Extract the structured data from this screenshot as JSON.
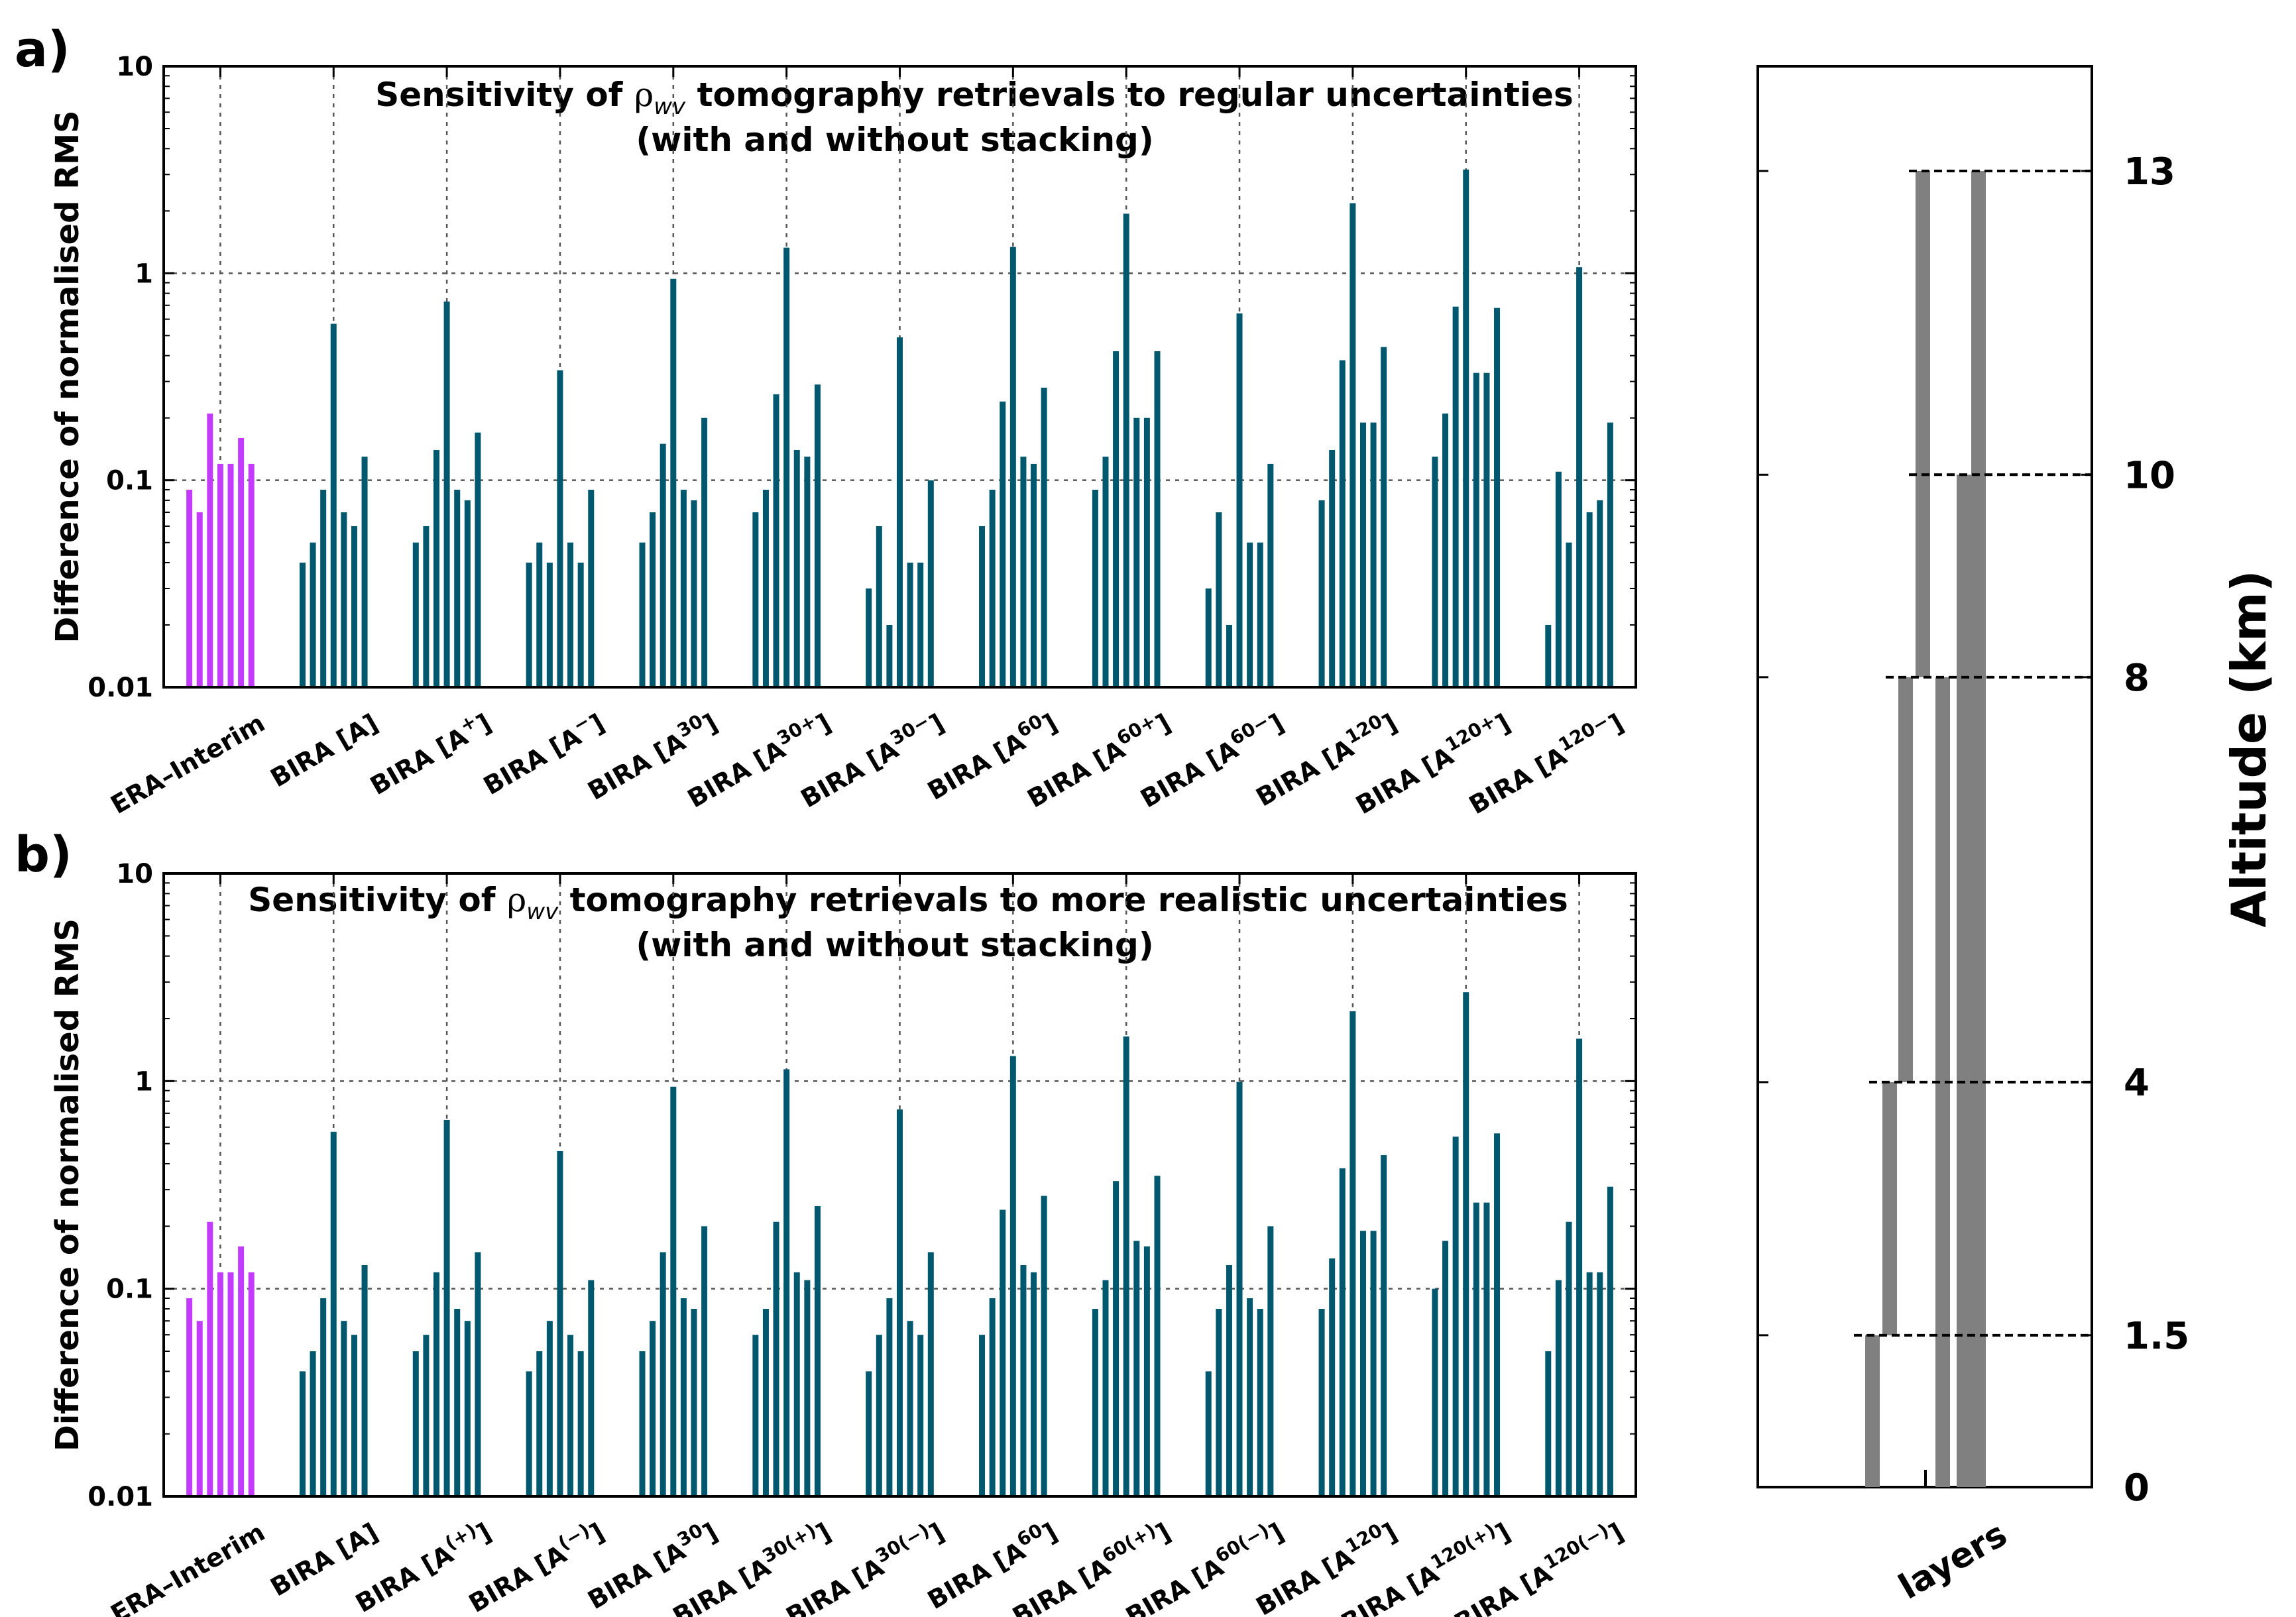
{
  "chart_data": [
    {
      "type": "bar",
      "panel_label": "a)",
      "title_prefix": "Sensitivity of ",
      "title_rho": "ρ",
      "title_sub": "wv",
      "title_suffix": " tomography retrievals to regular uncertainties",
      "subtitle": "(with and without stacking)",
      "ylabel": "Difference of normalised RMS",
      "xlabel": "",
      "yscale": "log",
      "ylim": [
        0.01,
        10
      ],
      "yticks": [
        "0.01",
        "0.1",
        "1",
        "10"
      ],
      "grid": true,
      "categories": [
        {
          "base": "ERA–Interim",
          "sup": ""
        },
        {
          "base": "BIRA [A]",
          "sup": ""
        },
        {
          "base": "BIRA [A",
          "sup": "+",
          "close": "]"
        },
        {
          "base": "BIRA [A",
          "sup": "−",
          "close": "]"
        },
        {
          "base": "BIRA [A",
          "sup": "30",
          "close": "]"
        },
        {
          "base": "BIRA [A",
          "sup": "30+",
          "close": "]"
        },
        {
          "base": "BIRA [A",
          "sup": "30−",
          "close": "]"
        },
        {
          "base": "BIRA [A",
          "sup": "60",
          "close": "]"
        },
        {
          "base": "BIRA [A",
          "sup": "60+",
          "close": "]"
        },
        {
          "base": "BIRA [A",
          "sup": "60−",
          "close": "]"
        },
        {
          "base": "BIRA [A",
          "sup": "120",
          "close": "]"
        },
        {
          "base": "BIRA [A",
          "sup": "120+",
          "close": "]"
        },
        {
          "base": "BIRA [A",
          "sup": "120−",
          "close": "]"
        }
      ],
      "groups": [
        [
          0.09,
          0.07,
          0.21,
          0.12,
          0.12,
          0.16,
          0.12
        ],
        [
          0.04,
          0.05,
          0.09,
          0.57,
          0.07,
          0.06,
          0.13
        ],
        [
          0.05,
          0.06,
          0.14,
          0.73,
          0.09,
          0.08,
          0.17
        ],
        [
          0.04,
          0.05,
          0.04,
          0.34,
          0.05,
          0.04,
          0.09
        ],
        [
          0.05,
          0.07,
          0.15,
          0.94,
          0.09,
          0.08,
          0.2
        ],
        [
          0.07,
          0.09,
          0.26,
          1.33,
          0.14,
          0.13,
          0.29
        ],
        [
          0.03,
          0.06,
          0.02,
          0.49,
          0.04,
          0.04,
          0.1
        ],
        [
          0.06,
          0.09,
          0.24,
          1.34,
          0.13,
          0.12,
          0.28
        ],
        [
          0.09,
          0.13,
          0.42,
          1.94,
          0.2,
          0.2,
          0.42
        ],
        [
          0.03,
          0.07,
          0.02,
          0.64,
          0.05,
          0.05,
          0.12
        ],
        [
          0.08,
          0.14,
          0.38,
          2.18,
          0.19,
          0.19,
          0.44
        ],
        [
          0.13,
          0.21,
          0.69,
          3.17,
          0.33,
          0.33,
          0.68
        ],
        [
          0.02,
          0.11,
          0.05,
          1.07,
          0.07,
          0.08,
          0.19
        ]
      ],
      "colors": {
        "era": "#c23bff",
        "bira": "#00586f"
      }
    },
    {
      "type": "bar",
      "panel_label": "b)",
      "title_prefix": "Sensitivity of ",
      "title_rho": "ρ",
      "title_sub": "wv",
      "title_suffix": " tomography retrievals to more realistic uncertainties",
      "subtitle": "(with and without stacking)",
      "ylabel": "Difference of normalised RMS",
      "xlabel": "",
      "yscale": "log",
      "ylim": [
        0.01,
        10
      ],
      "yticks": [
        "0.01",
        "0.1",
        "1",
        "10"
      ],
      "grid": true,
      "categories": [
        {
          "base": "ERA–Interim",
          "sup": ""
        },
        {
          "base": "BIRA [A]",
          "sup": ""
        },
        {
          "base": "BIRA [A",
          "sup": "(+)",
          "close": "]"
        },
        {
          "base": "BIRA [A",
          "sup": "(−)",
          "close": "]"
        },
        {
          "base": "BIRA [A",
          "sup": "30",
          "close": "]"
        },
        {
          "base": "BIRA [A",
          "sup": "30(+)",
          "close": "]"
        },
        {
          "base": "BIRA [A",
          "sup": "30(−)",
          "close": "]"
        },
        {
          "base": "BIRA [A",
          "sup": "60",
          "close": "]"
        },
        {
          "base": "BIRA [A",
          "sup": "60(+)",
          "close": "]"
        },
        {
          "base": "BIRA [A",
          "sup": "60(−)",
          "close": "]"
        },
        {
          "base": "BIRA [A",
          "sup": "120",
          "close": "]"
        },
        {
          "base": "BIRA [A",
          "sup": "120(+)",
          "close": "]"
        },
        {
          "base": "BIRA [A",
          "sup": "120(−)",
          "close": "]"
        }
      ],
      "groups": [
        [
          0.09,
          0.07,
          0.21,
          0.12,
          0.12,
          0.16,
          0.12
        ],
        [
          0.04,
          0.05,
          0.09,
          0.57,
          0.07,
          0.06,
          0.13
        ],
        [
          0.05,
          0.06,
          0.12,
          0.65,
          0.08,
          0.07,
          0.15
        ],
        [
          0.04,
          0.05,
          0.07,
          0.46,
          0.06,
          0.05,
          0.11
        ],
        [
          0.05,
          0.07,
          0.15,
          0.94,
          0.09,
          0.08,
          0.2
        ],
        [
          0.06,
          0.08,
          0.21,
          1.14,
          0.12,
          0.11,
          0.25
        ],
        [
          0.04,
          0.06,
          0.09,
          0.73,
          0.07,
          0.06,
          0.15
        ],
        [
          0.06,
          0.09,
          0.24,
          1.32,
          0.13,
          0.12,
          0.28
        ],
        [
          0.08,
          0.11,
          0.33,
          1.64,
          0.17,
          0.16,
          0.35
        ],
        [
          0.04,
          0.08,
          0.13,
          0.99,
          0.09,
          0.08,
          0.2
        ],
        [
          0.08,
          0.14,
          0.38,
          2.17,
          0.19,
          0.19,
          0.44
        ],
        [
          0.1,
          0.17,
          0.54,
          2.68,
          0.26,
          0.26,
          0.56
        ],
        [
          0.05,
          0.11,
          0.21,
          1.6,
          0.12,
          0.12,
          0.31
        ]
      ],
      "colors": {
        "era": "#c23bff",
        "bira": "#00586f"
      }
    },
    {
      "type": "bar",
      "title": "",
      "ylabel": "Altitude (km)",
      "xlabel": "layers",
      "ylim": [
        0,
        13
      ],
      "yticks": [
        "0",
        "1.5",
        "4",
        "8",
        "10",
        "13"
      ],
      "tick_values": [
        0,
        1.5,
        4,
        8,
        10,
        13
      ],
      "grid": true,
      "layers": [
        {
          "bottom": 0,
          "top": 1.5
        },
        {
          "bottom": 1.5,
          "top": 4
        },
        {
          "bottom": 4,
          "top": 8
        },
        {
          "bottom": 8,
          "top": 13
        },
        {
          "bottom": 0,
          "top": 8
        },
        {
          "bottom": 0,
          "top": 10
        },
        {
          "bottom": 0,
          "top": 13
        }
      ],
      "colors": {
        "bar": "#808080"
      }
    }
  ]
}
